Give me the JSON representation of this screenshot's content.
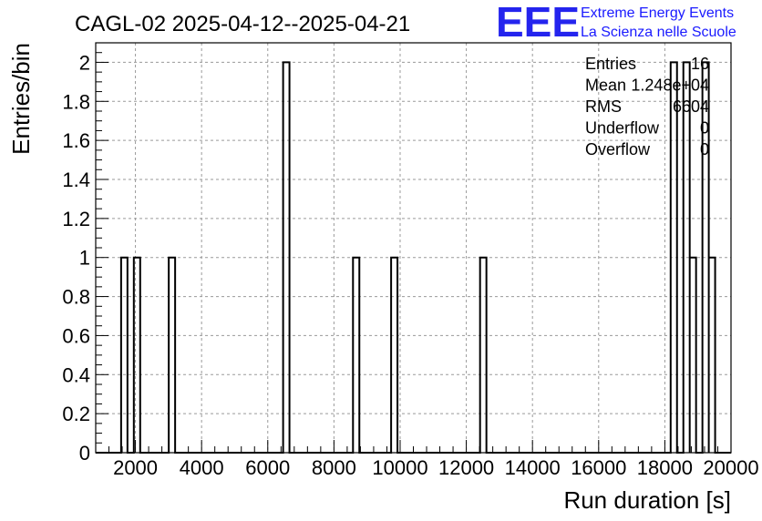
{
  "chart_data": {
    "type": "bar",
    "title": "CAGL-02 2025-04-12--2025-04-21",
    "xlabel": "Run duration [s]",
    "ylabel": "Entries/bin",
    "xlim": [
      800,
      20000
    ],
    "ylim": [
      0,
      2.1
    ],
    "grid": true,
    "x_ticks": [
      2000,
      4000,
      6000,
      8000,
      10000,
      12000,
      14000,
      16000,
      18000,
      20000
    ],
    "x_tick_labels": [
      "2000",
      "4000",
      "6000",
      "8000",
      "10000",
      "12000",
      "14000",
      "16000",
      "18000",
      "20000"
    ],
    "y_ticks": [
      0,
      0.2,
      0.4,
      0.6,
      0.8,
      1,
      1.2,
      1.4,
      1.6,
      1.8,
      2
    ],
    "y_tick_labels": [
      "0",
      "0.2",
      "0.4",
      "0.6",
      "0.8",
      "1",
      "1.2",
      "1.4",
      "1.6",
      "1.8",
      "2"
    ],
    "bin_width": 192,
    "bins": [
      {
        "x_low": 1568,
        "value": 1
      },
      {
        "x_low": 1952,
        "value": 1
      },
      {
        "x_low": 3008,
        "value": 1
      },
      {
        "x_low": 6464,
        "value": 2
      },
      {
        "x_low": 8576,
        "value": 1
      },
      {
        "x_low": 9728,
        "value": 1
      },
      {
        "x_low": 12416,
        "value": 1
      },
      {
        "x_low": 18176,
        "value": 2
      },
      {
        "x_low": 18560,
        "value": 2
      },
      {
        "x_low": 18752,
        "value": 1
      },
      {
        "x_low": 19136,
        "value": 2
      },
      {
        "x_low": 19328,
        "value": 1
      }
    ],
    "stats_box": {
      "rows": [
        {
          "label": "Entries",
          "value": "16"
        },
        {
          "label": "Mean",
          "value": "1.248e+04"
        },
        {
          "label": "RMS",
          "value": "6604"
        },
        {
          "label": "Underflow",
          "value": "0"
        },
        {
          "label": "Overflow",
          "value": "0"
        }
      ]
    }
  },
  "logo": {
    "mark": "EEE",
    "line1": "Extreme Energy Events",
    "line2": "La Scienza nelle Scuole",
    "color": "#1a1aff"
  }
}
